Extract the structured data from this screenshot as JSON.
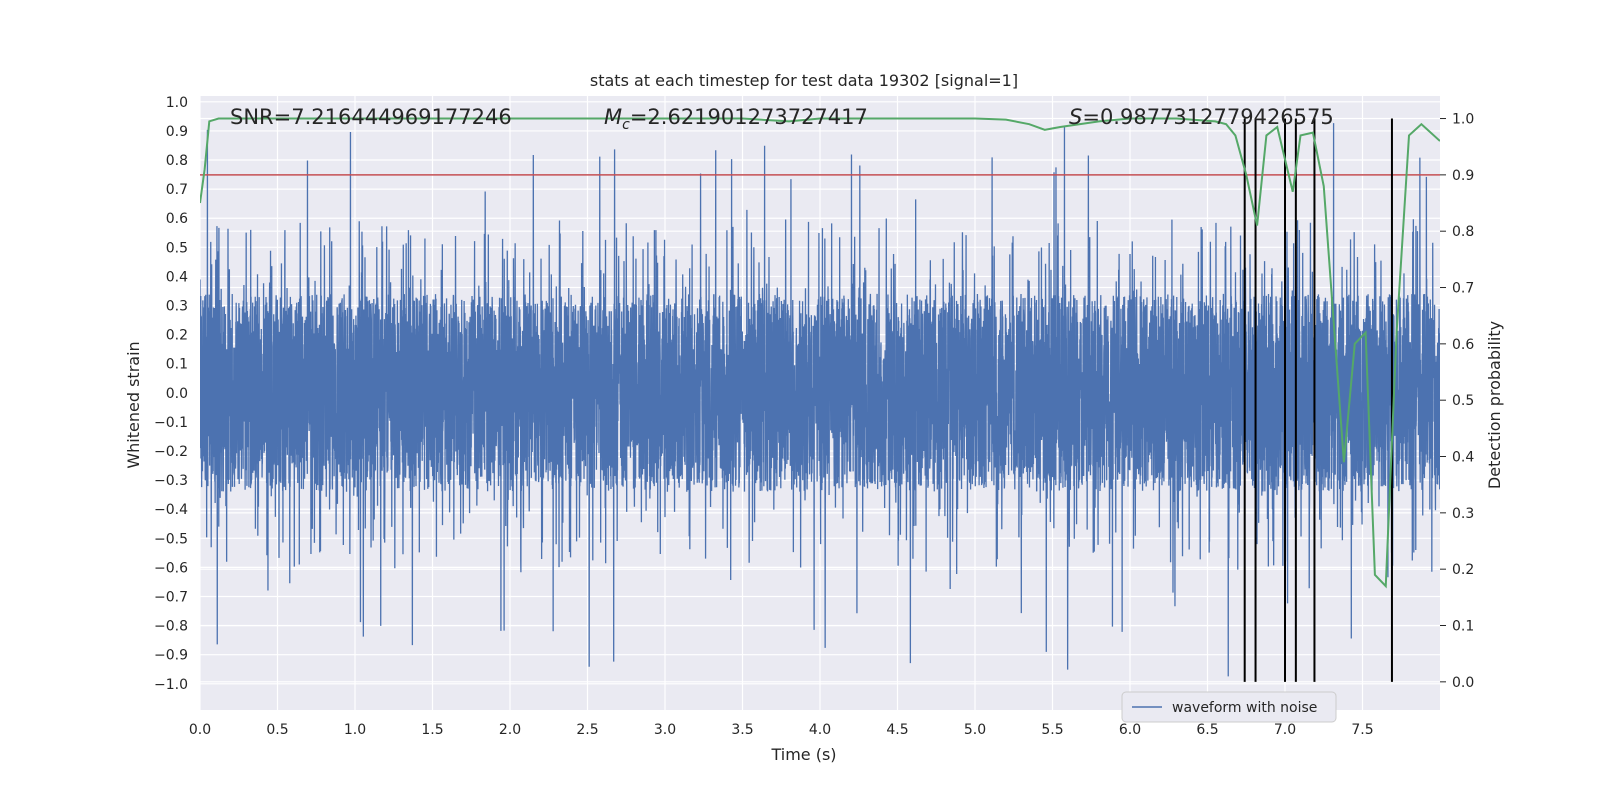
{
  "chart_data": {
    "type": "line",
    "title": "stats at each timestep for test data 19302 [signal=1]",
    "xlabel": "Time (s)",
    "ylabel": "Whitened strain",
    "ylabel_right": "Detection probability",
    "xlim": [
      0.0,
      8.0
    ],
    "ylim": [
      -1.09,
      1.02
    ],
    "ylim_right": [
      -0.05,
      1.04
    ],
    "xticks": [
      "0.0",
      "0.5",
      "1.0",
      "1.5",
      "2.0",
      "2.5",
      "3.0",
      "3.5",
      "4.0",
      "4.5",
      "5.0",
      "5.5",
      "6.0",
      "6.5",
      "7.0",
      "7.5"
    ],
    "yticks": [
      "1.0",
      "0.9",
      "0.8",
      "0.7",
      "0.6",
      "0.5",
      "0.4",
      "0.3",
      "0.2",
      "0.1",
      "0.0",
      "−0.1",
      "−0.2",
      "−0.3",
      "−0.4",
      "−0.5",
      "−0.6",
      "−0.7",
      "−0.8",
      "−0.9",
      "−1.0"
    ],
    "yticks_right": [
      "1.0",
      "0.9",
      "0.8",
      "0.7",
      "0.6",
      "0.5",
      "0.4",
      "0.3",
      "0.2",
      "0.1",
      "0.0"
    ],
    "grid": true,
    "legend": {
      "entries": [
        "waveform with noise"
      ],
      "placement": "bottom-right"
    },
    "annotations": {
      "snr": "SNR=7.216444969177246",
      "mc": "=2.621901273727417",
      "s": "=0.9877312779426575"
    },
    "series": [
      {
        "name": "waveform with noise",
        "color": "#4c72b0",
        "axis": "left",
        "samples": 8192,
        "core_amplitude": 0.34,
        "spike_max": 0.93,
        "spike_min": -1.0
      },
      {
        "name": "detection probability",
        "color": "#55a868",
        "axis": "right",
        "x": [
          0.0,
          0.03,
          0.06,
          0.12,
          0.3,
          1.0,
          2.0,
          3.0,
          3.5,
          3.8,
          4.0,
          4.5,
          5.0,
          5.2,
          5.35,
          5.45,
          5.55,
          5.8,
          6.0,
          6.3,
          6.55,
          6.62,
          6.68,
          6.75,
          6.82,
          6.88,
          6.95,
          7.05,
          7.1,
          7.18,
          7.25,
          7.38,
          7.45,
          7.52,
          7.58,
          7.65,
          7.72,
          7.8,
          7.88,
          8.0
        ],
        "y": [
          0.85,
          0.91,
          0.995,
          1.0,
          1.0,
          1.0,
          1.0,
          1.0,
          1.0,
          0.995,
          1.0,
          1.0,
          1.0,
          0.998,
          0.99,
          0.98,
          0.985,
          0.995,
          1.0,
          1.0,
          0.995,
          0.99,
          0.97,
          0.9,
          0.81,
          0.97,
          0.985,
          0.87,
          0.97,
          0.975,
          0.88,
          0.39,
          0.6,
          0.62,
          0.19,
          0.17,
          0.62,
          0.97,
          0.99,
          0.96
        ]
      }
    ],
    "threshold_line": {
      "axis": "right",
      "value": 0.9,
      "color": "#c44e52"
    },
    "vertical_lines": {
      "x": [
        6.74,
        6.81,
        7.0,
        7.07,
        7.19,
        7.69
      ],
      "y_range_right": [
        0.0,
        1.0
      ],
      "color": "#000000"
    }
  }
}
